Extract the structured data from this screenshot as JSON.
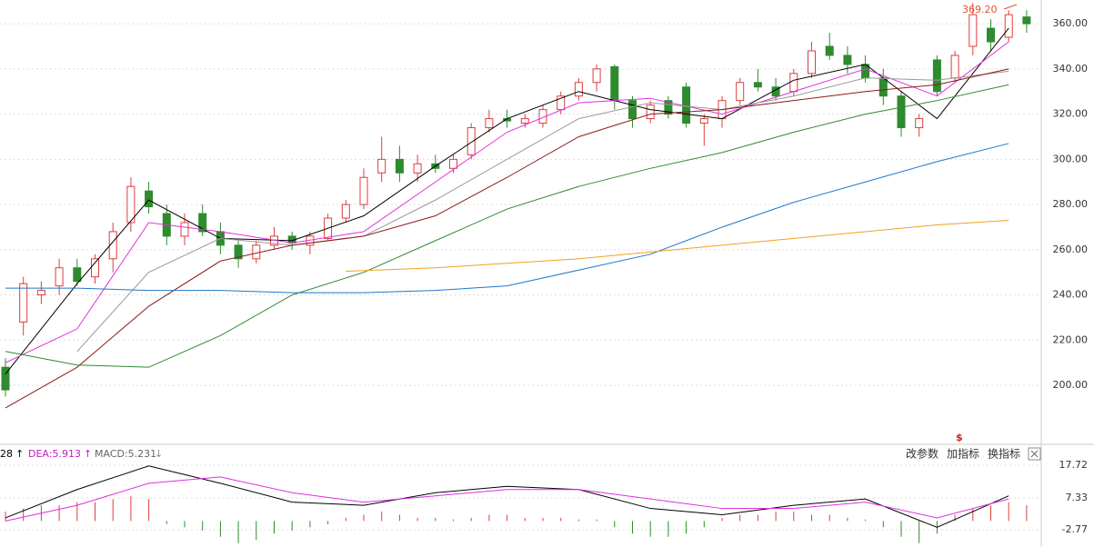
{
  "chart_data": [
    {
      "type": "candlestick",
      "ylim": [
        174.3,
        370.5
      ],
      "yticks": [
        {
          "value": 360,
          "label": "360.00"
        },
        {
          "value": 340,
          "label": "340.00"
        },
        {
          "value": 320,
          "label": "320.00"
        },
        {
          "value": 300,
          "label": "300.00"
        },
        {
          "value": 280,
          "label": "280.00"
        },
        {
          "value": 260,
          "label": "260.00"
        },
        {
          "value": 240,
          "label": "240.00"
        },
        {
          "value": 220,
          "label": "220.00"
        },
        {
          "value": 200,
          "label": "200.00"
        }
      ],
      "grid": true,
      "up_color": "#e03c3c",
      "down_color": "#2e8b2e",
      "open": [
        208,
        228,
        240,
        244,
        252,
        248,
        256,
        272,
        286,
        276,
        266,
        276,
        268,
        262,
        256,
        262,
        266,
        262,
        265,
        274,
        280,
        294,
        300,
        294,
        298,
        296,
        302,
        314,
        318,
        316,
        316,
        322,
        328,
        334,
        341,
        326,
        318,
        326,
        332,
        316,
        318,
        326,
        334,
        332,
        330,
        338,
        350,
        346,
        342,
        336,
        328,
        314,
        344,
        336,
        350,
        358,
        354,
        363
      ],
      "high": [
        212,
        248,
        246,
        256,
        256,
        258,
        272,
        292,
        290,
        280,
        276,
        280,
        272,
        264,
        264,
        270,
        268,
        268,
        276,
        282,
        296,
        310,
        306,
        302,
        302,
        302,
        316,
        322,
        322,
        320,
        324,
        330,
        336,
        342,
        342,
        328,
        326,
        328,
        334,
        320,
        328,
        336,
        340,
        336,
        340,
        352,
        356,
        350,
        346,
        340,
        330,
        320,
        346,
        348,
        369.2,
        362,
        366,
        366
      ],
      "low": [
        195,
        222,
        236,
        240,
        244,
        245,
        250,
        268,
        276,
        262,
        262,
        266,
        258,
        252,
        254,
        260,
        260,
        258,
        264,
        272,
        278,
        290,
        290,
        290,
        294,
        294,
        300,
        312,
        314,
        314,
        314,
        320,
        326,
        330,
        322,
        314,
        316,
        318,
        314,
        306,
        314,
        324,
        330,
        326,
        328,
        336,
        344,
        338,
        334,
        324,
        310,
        310,
        328,
        334,
        346,
        348,
        352,
        356
      ],
      "close": [
        198,
        245,
        242,
        252,
        246,
        256,
        268,
        288,
        279,
        266,
        272,
        268,
        262,
        256,
        262,
        266,
        263,
        266,
        274,
        280,
        292,
        300,
        294,
        298,
        296,
        300,
        314,
        318,
        317,
        318,
        322,
        328,
        334,
        340,
        326,
        318,
        324,
        320,
        316,
        318,
        326,
        334,
        332,
        328,
        338,
        348,
        346,
        342,
        336,
        328,
        314,
        318,
        330,
        346,
        364,
        352,
        364,
        360
      ],
      "max_label": "369.20",
      "marker": "$",
      "series": [
        {
          "color": "#000000",
          "x": [
            0,
            4,
            8,
            12,
            16,
            20,
            24,
            28,
            32,
            36,
            40,
            44,
            48,
            52,
            56
          ],
          "values": [
            205,
            245,
            282,
            265,
            264,
            275,
            297,
            318,
            330,
            322,
            318,
            335,
            342,
            318,
            358
          ]
        },
        {
          "color": "#e030e0",
          "x": [
            0,
            4,
            8,
            12,
            16,
            20,
            24,
            28,
            32,
            36,
            40,
            44,
            48,
            52,
            56
          ],
          "values": [
            210,
            225,
            272,
            268,
            263,
            268,
            290,
            312,
            325,
            327,
            320,
            330,
            340,
            328,
            352
          ]
        },
        {
          "color": "#999999",
          "x": [
            0,
            4,
            8,
            12,
            16,
            20,
            24,
            28,
            32,
            36,
            40,
            44,
            48,
            52,
            56
          ],
          "values": [
            null,
            215,
            250,
            265,
            262,
            266,
            282,
            300,
            318,
            325,
            322,
            328,
            336,
            335,
            339
          ]
        },
        {
          "color": "#8b1a1a",
          "x": [
            0,
            4,
            8,
            12,
            16,
            20,
            24,
            28,
            32,
            36,
            40,
            44,
            48,
            52,
            56
          ],
          "values": [
            190,
            208,
            235,
            255,
            262,
            266,
            275,
            292,
            310,
            320,
            322,
            326,
            330,
            333,
            340
          ]
        },
        {
          "color": "#2e8b2e",
          "x": [
            0,
            4,
            8,
            12,
            16,
            20,
            24,
            28,
            32,
            36,
            40,
            44,
            48,
            52,
            56
          ],
          "values": [
            215,
            209,
            208,
            222,
            240,
            250,
            264,
            278,
            288,
            296,
            303,
            312,
            320,
            326,
            333
          ]
        },
        {
          "color": "#1f78c8",
          "x": [
            0,
            4,
            8,
            12,
            16,
            20,
            24,
            28,
            32,
            36,
            40,
            44,
            48,
            52,
            56
          ],
          "values": [
            243,
            243,
            242,
            242,
            241,
            241,
            242,
            244,
            251,
            258,
            270,
            281,
            290,
            299,
            307
          ]
        },
        {
          "color": "#f0a020",
          "x": [
            19,
            24,
            28,
            32,
            36,
            40,
            44,
            48,
            52,
            56
          ],
          "values": [
            250.5,
            252,
            254,
            256,
            259,
            262,
            265,
            268,
            271,
            273
          ]
        }
      ]
    },
    {
      "type": "macd",
      "ylim": [
        -8.25,
        23.5
      ],
      "yticks": [
        17.72,
        7.33,
        -2.77
      ],
      "grid": true,
      "header": [
        "28",
        "DEA:5.913",
        "MACD:5.231"
      ],
      "histogram": [
        3,
        4,
        5,
        5,
        6,
        6,
        7,
        8,
        7,
        -1,
        -2,
        -3,
        -5,
        -7,
        -6,
        -4,
        -3,
        -2,
        -1,
        1,
        2,
        3,
        2,
        1,
        1,
        0.5,
        1,
        2,
        2,
        1,
        1,
        1,
        0.5,
        0.5,
        -2,
        -4,
        -5,
        -5,
        -4,
        -2,
        1,
        2,
        2,
        3,
        3,
        2,
        2,
        1,
        0.5,
        -2,
        -5,
        -7,
        -4,
        2,
        4,
        5,
        6,
        5
      ],
      "series": [
        {
          "color": "#000000",
          "x": [
            0,
            4,
            8,
            12,
            16,
            20,
            24,
            28,
            32,
            36,
            40,
            44,
            48,
            52,
            56
          ],
          "values": [
            1,
            10,
            17.5,
            12,
            6,
            5,
            9,
            11,
            10,
            4,
            2,
            5,
            7,
            -2,
            8
          ]
        },
        {
          "color": "#e030e0",
          "x": [
            0,
            4,
            8,
            12,
            16,
            20,
            24,
            28,
            32,
            36,
            40,
            44,
            48,
            52,
            56
          ],
          "values": [
            0,
            5,
            12,
            14,
            9,
            6,
            8,
            10,
            10,
            7,
            4,
            4,
            6,
            1,
            7
          ]
        }
      ]
    }
  ],
  "toolbar": [
    "改参数",
    "加指标",
    "换指标"
  ]
}
